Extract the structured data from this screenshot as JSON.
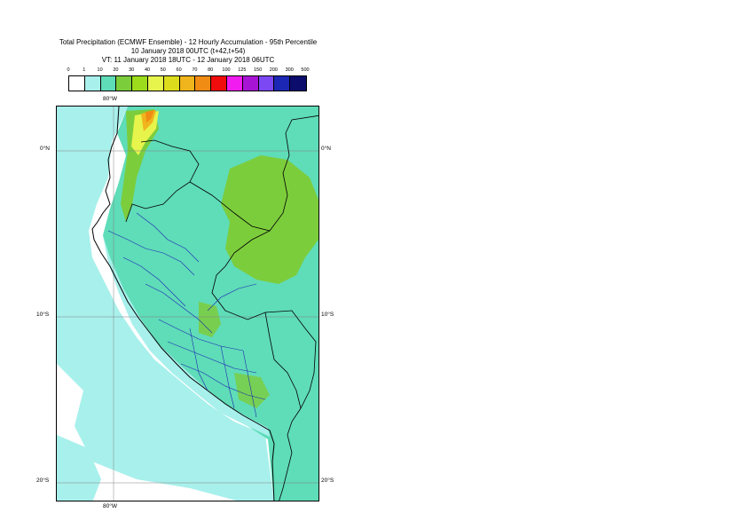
{
  "title": {
    "line1": "Total Precipitation (ECMWF Ensemble) - 12 Hourly Accumulation - 95th Percentile",
    "line2": "10 January 2018 00UTC (t+42,t+54)",
    "line3": "VT: 11 January 2018 18UTC - 12 January 2018 06UTC"
  },
  "legend": {
    "labels": [
      "0",
      "1",
      "10",
      "20",
      "30",
      "40",
      "50",
      "60",
      "70",
      "80",
      "100",
      "125",
      "150",
      "200",
      "300",
      "500"
    ],
    "colors": [
      "#ffffff",
      "#a8f0ec",
      "#5fdcb8",
      "#7ccd3c",
      "#9cdc1c",
      "#e6f44c",
      "#dcdc1c",
      "#f0b41c",
      "#f08c14",
      "#f00c0c",
      "#f01cf0",
      "#a814d4",
      "#7c48f4",
      "#1c28b4",
      "#0c0c6c"
    ]
  },
  "map": {
    "lat_labels": [
      "0°N",
      "10°S",
      "20°S"
    ],
    "lon_labels": [
      "80°W"
    ]
  }
}
